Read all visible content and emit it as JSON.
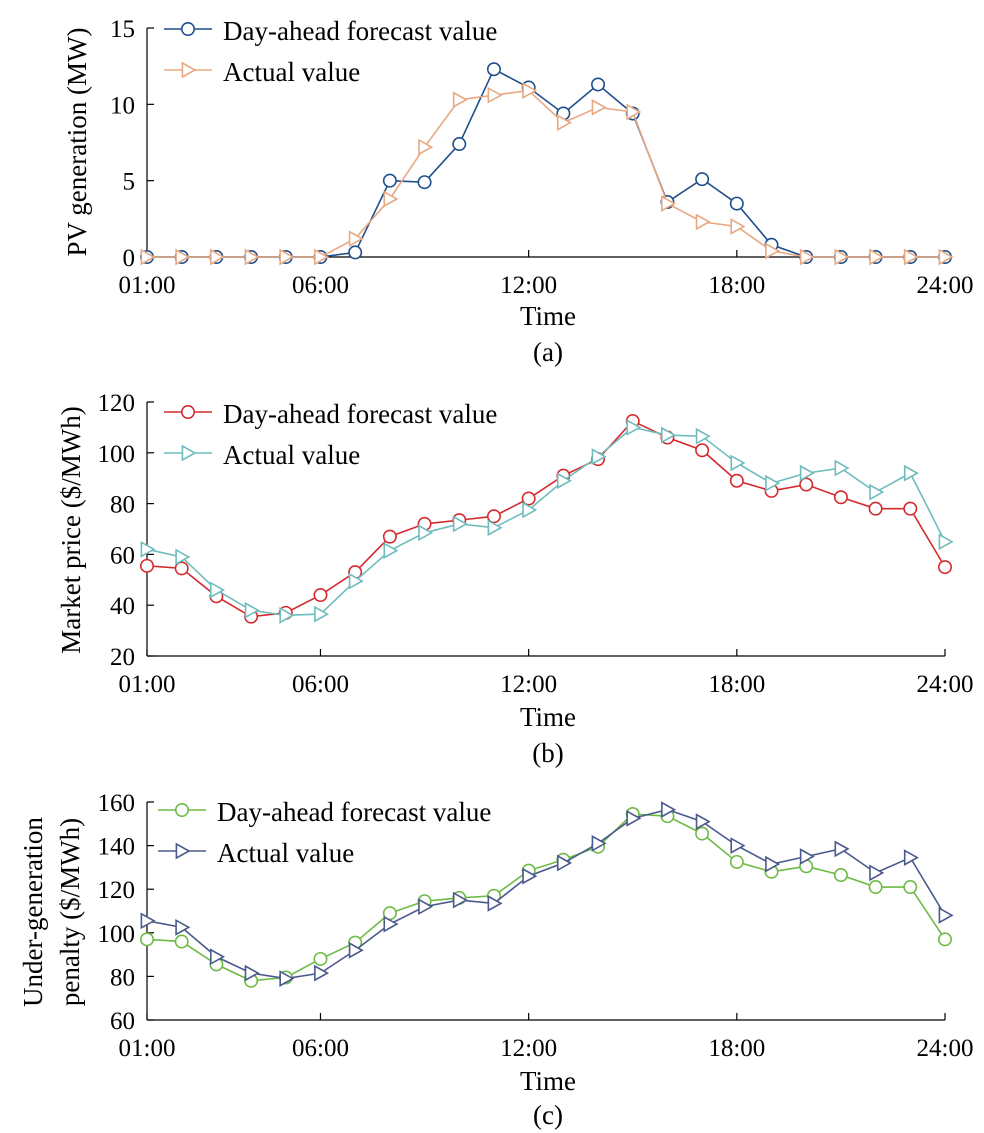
{
  "chart_data": [
    {
      "id": "a",
      "type": "line",
      "caption": "(a)",
      "xlabel": "Time",
      "ylabel": "PV generation (MW)",
      "x": [
        "01:00",
        "02:00",
        "03:00",
        "04:00",
        "05:00",
        "06:00",
        "07:00",
        "08:00",
        "09:00",
        "10:00",
        "11:00",
        "12:00",
        "13:00",
        "14:00",
        "15:00",
        "16:00",
        "17:00",
        "18:00",
        "19:00",
        "20:00",
        "21:00",
        "22:00",
        "23:00",
        "24:00"
      ],
      "xticks": [
        "01:00",
        "06:00",
        "12:00",
        "18:00",
        "24:00"
      ],
      "ylim": [
        0,
        15
      ],
      "yticks": [
        0,
        5,
        10,
        15
      ],
      "legend_position": "top-left",
      "grid": false,
      "series": [
        {
          "name": "Day-ahead forecast value",
          "marker": "circle",
          "color": "#1f4e8c",
          "values": [
            0,
            0,
            0,
            0,
            0,
            0,
            0.3,
            5.0,
            4.9,
            7.4,
            12.3,
            11.1,
            9.4,
            11.3,
            9.4,
            3.6,
            5.1,
            3.5,
            0.8,
            0,
            0,
            0,
            0,
            0
          ]
        },
        {
          "name": "Actual value",
          "marker": "triangle-right",
          "color": "#e8a882",
          "values": [
            0,
            0,
            0,
            0,
            0,
            0,
            1.2,
            3.8,
            7.2,
            10.3,
            10.6,
            10.9,
            8.8,
            9.8,
            9.5,
            3.5,
            2.3,
            2.0,
            0.4,
            0,
            0,
            0,
            0,
            0
          ]
        }
      ]
    },
    {
      "id": "b",
      "type": "line",
      "caption": "(b)",
      "xlabel": "Time",
      "ylabel": "Market price ($/MWh)",
      "x": [
        "01:00",
        "02:00",
        "03:00",
        "04:00",
        "05:00",
        "06:00",
        "07:00",
        "08:00",
        "09:00",
        "10:00",
        "11:00",
        "12:00",
        "13:00",
        "14:00",
        "15:00",
        "16:00",
        "17:00",
        "18:00",
        "19:00",
        "20:00",
        "21:00",
        "22:00",
        "23:00",
        "24:00"
      ],
      "xticks": [
        "01:00",
        "06:00",
        "12:00",
        "18:00",
        "24:00"
      ],
      "ylim": [
        20,
        120
      ],
      "yticks": [
        20,
        40,
        60,
        80,
        100,
        120
      ],
      "legend_position": "top-left",
      "grid": false,
      "series": [
        {
          "name": "Day-ahead forecast value",
          "marker": "circle",
          "color": "#d42a2e",
          "values": [
            55.5,
            54.5,
            43.5,
            35.5,
            37,
            44,
            53,
            67,
            72,
            73.5,
            75,
            82,
            91,
            97.5,
            112.5,
            106,
            101,
            89,
            85,
            87.5,
            82.5,
            78,
            78,
            55
          ]
        },
        {
          "name": "Actual value",
          "marker": "triangle-right",
          "color": "#6fbcbd",
          "values": [
            62,
            59,
            46,
            38,
            36,
            36.5,
            49.5,
            61.5,
            68.5,
            72,
            70.5,
            77.5,
            89,
            98.5,
            110,
            107,
            106.5,
            96,
            88,
            92,
            94,
            84.5,
            92,
            65
          ]
        }
      ]
    },
    {
      "id": "c",
      "type": "line",
      "caption": "(c)",
      "xlabel": "Time",
      "ylabel": [
        "Under-generation",
        "penalty ($/MWh)"
      ],
      "x": [
        "01:00",
        "02:00",
        "03:00",
        "04:00",
        "05:00",
        "06:00",
        "07:00",
        "08:00",
        "09:00",
        "10:00",
        "11:00",
        "12:00",
        "13:00",
        "14:00",
        "15:00",
        "16:00",
        "17:00",
        "18:00",
        "19:00",
        "20:00",
        "21:00",
        "22:00",
        "23:00",
        "24:00"
      ],
      "xticks": [
        "01:00",
        "06:00",
        "12:00",
        "18:00",
        "24:00"
      ],
      "ylim": [
        60,
        160
      ],
      "yticks": [
        60,
        80,
        100,
        120,
        140,
        160
      ],
      "legend_position": "top-left",
      "grid": false,
      "series": [
        {
          "name": "Day-ahead forecast value",
          "marker": "circle",
          "color": "#6dbb45",
          "values": [
            97,
            96,
            85.5,
            78,
            79.5,
            88,
            95.5,
            109,
            114.5,
            116,
            117,
            128.5,
            133.5,
            139.5,
            154.5,
            153.5,
            145.5,
            132.5,
            128,
            130.5,
            126.5,
            121,
            121,
            97
          ]
        },
        {
          "name": "Actual value",
          "marker": "triangle-right",
          "color": "#4b5a8d",
          "values": [
            105.5,
            102.5,
            89,
            81.5,
            79,
            81.5,
            92,
            104,
            112,
            115,
            113.5,
            126,
            132,
            141,
            152.5,
            156.5,
            151,
            140,
            131.5,
            135,
            138.5,
            127.5,
            134.5,
            108
          ]
        }
      ]
    }
  ]
}
